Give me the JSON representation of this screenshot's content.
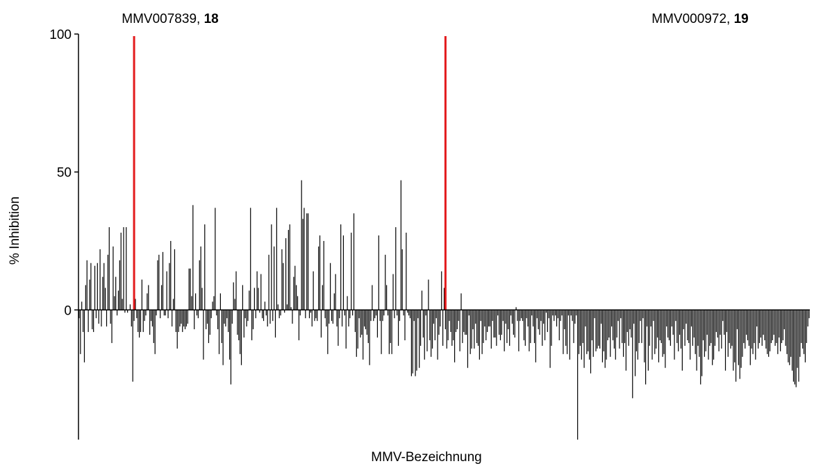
{
  "chart_data": {
    "type": "bar",
    "title": "",
    "xlabel": "MMV-Bezeichnung",
    "ylabel": "% Inhibition",
    "ylim": [
      -47,
      100
    ],
    "yticks": [
      0,
      50,
      100
    ],
    "ytick_labels": [
      "0",
      "50",
      "100"
    ],
    "grid": false,
    "legend": "none",
    "bar_color": "#000000",
    "marker_color": "#e31a1c",
    "markers": [
      {
        "compound": "MMV007839",
        "number": "18",
        "index": 42
      },
      {
        "compound": "MMV000972",
        "number": "19",
        "index": 280
      }
    ],
    "values": [
      -3,
      -16,
      3,
      -8,
      -19,
      9,
      18,
      -8,
      11,
      17,
      -7,
      -8,
      16,
      -3,
      17,
      -5,
      22,
      -6,
      12,
      17,
      8,
      -6,
      20,
      30,
      -5,
      -12,
      23,
      5,
      12,
      -2,
      7,
      18,
      28,
      4,
      30,
      -1,
      30,
      -1,
      0,
      2,
      -6,
      -26,
      -4,
      4,
      -3,
      -8,
      -10,
      -8,
      11,
      -8,
      -4,
      -2,
      6,
      9,
      -9,
      -4,
      -6,
      -12,
      -16,
      -2,
      18,
      20,
      -3,
      9,
      21,
      -2,
      -2,
      14,
      -3,
      17,
      25,
      -6,
      4,
      22,
      -8,
      -14,
      -8,
      -6,
      -5,
      -8,
      -6,
      -7,
      -6,
      -5,
      15,
      15,
      5,
      38,
      -7,
      6,
      -2,
      -3,
      18,
      23,
      8,
      -18,
      31,
      -7,
      -5,
      -12,
      -9,
      -3,
      3,
      5,
      37,
      -2,
      -7,
      -16,
      6,
      -12,
      -20,
      -5,
      -6,
      -3,
      -8,
      -18,
      -27,
      -5,
      10,
      4,
      14,
      -9,
      -11,
      -16,
      -20,
      9,
      -10,
      -3,
      -6,
      -4,
      7,
      37,
      -11,
      -7,
      8,
      -3,
      14,
      8,
      -1,
      13,
      -3,
      -4,
      3,
      -2,
      -6,
      20,
      -5,
      31,
      -4,
      23,
      -10,
      37,
      2,
      -3,
      -2,
      22,
      17,
      -1,
      26,
      2,
      29,
      31,
      1,
      -5,
      12,
      16,
      9,
      5,
      -11,
      -2,
      47,
      33,
      37,
      -3,
      35,
      35,
      -3,
      -1,
      -6,
      14,
      -4,
      -3,
      -4,
      23,
      27,
      -10,
      9,
      25,
      -3,
      -6,
      -16,
      -5,
      17,
      -4,
      -5,
      6,
      13,
      -6,
      -13,
      -3,
      31,
      -6,
      27,
      -2,
      -14,
      5,
      -6,
      -3,
      28,
      -2,
      35,
      -8,
      -17,
      -14,
      -3,
      -10,
      -9,
      -18,
      -6,
      -7,
      -9,
      -12,
      -20,
      -4,
      9,
      -4,
      -3,
      -2,
      -10,
      27,
      -4,
      -16,
      -4,
      -2,
      20,
      9,
      -2,
      -16,
      -12,
      -16,
      13,
      -3,
      30,
      -2,
      -13,
      -4,
      47,
      22,
      -2,
      -11,
      28,
      -1,
      -2,
      -3,
      -24,
      -23,
      -4,
      -24,
      -22,
      -3,
      -21,
      -13,
      7,
      -10,
      -18,
      -2,
      -15,
      11,
      -11,
      -17,
      -14,
      -5,
      -11,
      -3,
      -18,
      -9,
      -6,
      14,
      -13,
      8,
      -7,
      -14,
      -11,
      -4,
      -8,
      -13,
      -11,
      -19,
      -8,
      -7,
      -4,
      -15,
      6,
      -12,
      -8,
      -9,
      -9,
      -21,
      -2,
      -16,
      -14,
      -7,
      -14,
      -5,
      -12,
      -13,
      -18,
      -4,
      -16,
      -12,
      -6,
      -11,
      -8,
      -6,
      -6,
      -14,
      -4,
      -10,
      -10,
      -13,
      -2,
      -9,
      -11,
      -9,
      -4,
      -15,
      -5,
      -12,
      -7,
      -13,
      -2,
      -5,
      -9,
      -10,
      1,
      -4,
      -15,
      -4,
      -3,
      -4,
      -11,
      -13,
      -3,
      -6,
      -15,
      -12,
      -2,
      -6,
      -12,
      -19,
      -3,
      -7,
      -9,
      -4,
      -13,
      -5,
      -11,
      -1,
      -8,
      -3,
      -21,
      -13,
      -2,
      -4,
      -2,
      -6,
      -3,
      -11,
      -4,
      -2,
      -16,
      -7,
      -13,
      -16,
      -2,
      -18,
      -2,
      -4,
      -12,
      -5,
      -2,
      -47,
      -16,
      -13,
      -18,
      -12,
      -21,
      -6,
      -16,
      -15,
      -18,
      -23,
      -11,
      -17,
      -3,
      -15,
      -14,
      -13,
      -14,
      -5,
      -19,
      -15,
      -21,
      -18,
      -11,
      -10,
      -17,
      -6,
      -11,
      -14,
      -18,
      -10,
      -4,
      -14,
      -3,
      -12,
      -17,
      -12,
      -22,
      -8,
      -13,
      -7,
      -10,
      -32,
      -5,
      -24,
      -15,
      -18,
      -12,
      -4,
      -12,
      -3,
      -19,
      -27,
      -6,
      -22,
      -13,
      -6,
      -18,
      -4,
      -16,
      -14,
      -10,
      -19,
      -11,
      -12,
      -17,
      -16,
      -21,
      -6,
      -10,
      -11,
      -13,
      -6,
      -9,
      -18,
      -4,
      -12,
      -15,
      -9,
      -14,
      -22,
      -7,
      -13,
      -5,
      -11,
      -12,
      -18,
      -6,
      -13,
      -10,
      -16,
      -22,
      -13,
      -17,
      -27,
      -24,
      -11,
      -17,
      -15,
      -9,
      -18,
      -13,
      -12,
      -20,
      -18,
      -13,
      -8,
      -10,
      -15,
      -9,
      -14,
      -4,
      -9,
      -22,
      -8,
      -17,
      -12,
      -14,
      -13,
      -22,
      -19,
      -26,
      -7,
      -20,
      -25,
      -21,
      -17,
      -12,
      -14,
      -9,
      -11,
      -13,
      -20,
      -14,
      -16,
      -12,
      -18,
      -6,
      -14,
      -12,
      -10,
      -13,
      -9,
      -11,
      -14,
      -16,
      -17,
      -15,
      -12,
      -11,
      -9,
      -13,
      -12,
      -16,
      -10,
      -15,
      -12,
      -11,
      -7,
      -13,
      -16,
      -19,
      -20,
      -17,
      -22,
      -26,
      -27,
      -28,
      -21,
      -26,
      -17,
      -12,
      -14,
      -16,
      -19,
      -12,
      -6,
      -3
    ]
  }
}
